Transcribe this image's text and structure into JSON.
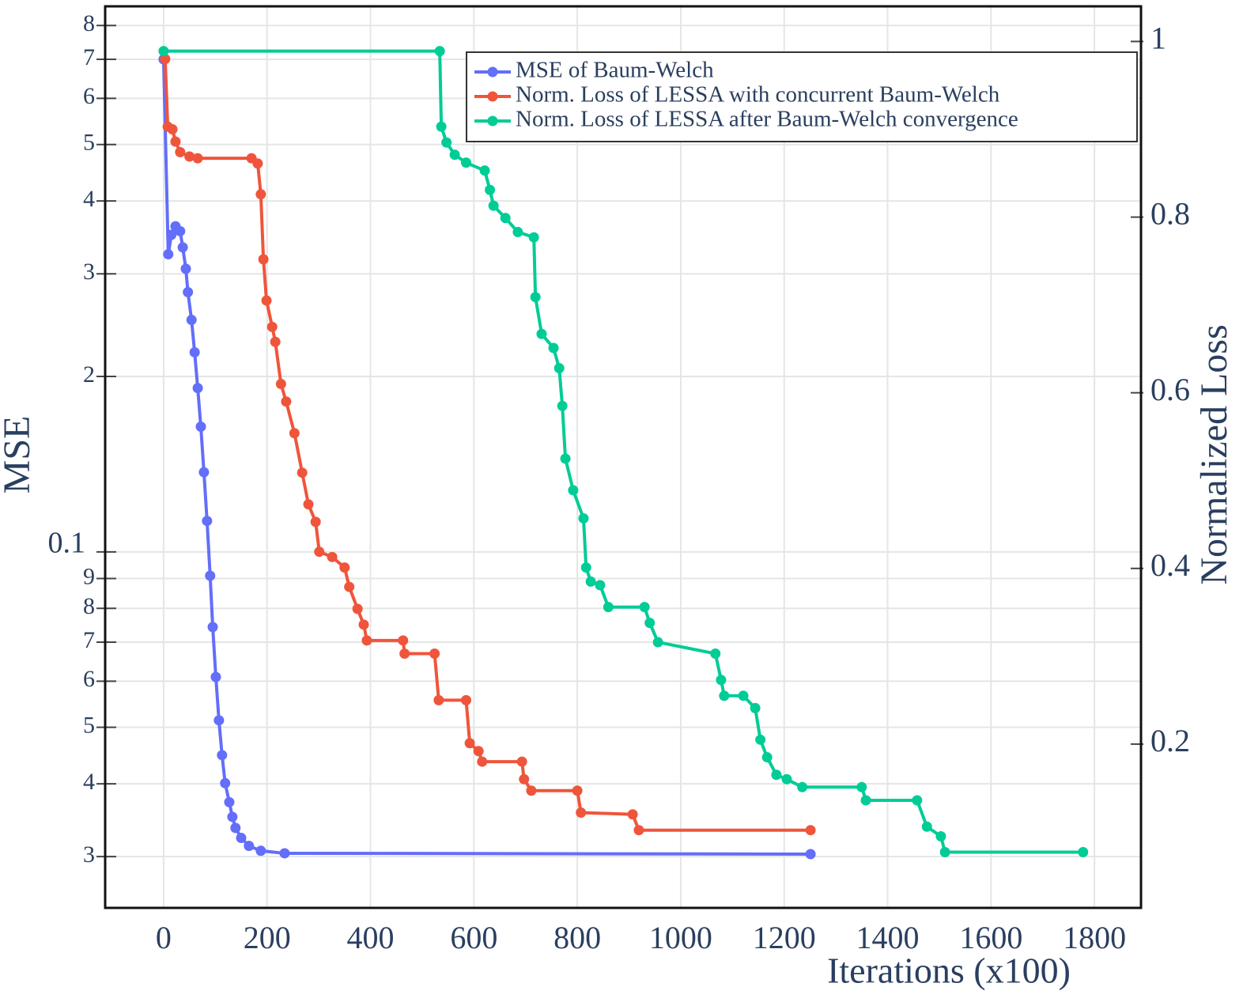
{
  "chart_data": {
    "type": "line",
    "x_label": "Iterations (x100)",
    "y_label": "MSE",
    "y2_label": "Normalized Loss",
    "xlim": [
      -113,
      1890
    ],
    "xticks": [
      0,
      200,
      400,
      600,
      800,
      1000,
      1200,
      1400,
      1600,
      1800
    ],
    "ylim": [
      0.0245,
      0.863
    ],
    "ylog": true,
    "yticks": [
      {
        "value": 0.03,
        "label": "3"
      },
      {
        "value": 0.04,
        "label": "4"
      },
      {
        "value": 0.05,
        "label": "5"
      },
      {
        "value": 0.06,
        "label": "6"
      },
      {
        "value": 0.07,
        "label": "7"
      },
      {
        "value": 0.08,
        "label": "8"
      },
      {
        "value": 0.09,
        "label": "9"
      },
      0.1,
      {
        "value": 0.2,
        "label": "2"
      },
      {
        "value": 0.3,
        "label": "3"
      },
      {
        "value": 0.4,
        "label": "4"
      },
      {
        "value": 0.5,
        "label": "5"
      },
      {
        "value": 0.6,
        "label": "6"
      },
      {
        "value": 0.7,
        "label": "7"
      },
      {
        "value": 0.8,
        "label": "8"
      }
    ],
    "y2lim": [
      0.0135,
      1.04
    ],
    "y2ticks": [
      0.2,
      0.4,
      0.6,
      0.8,
      1
    ],
    "grid": true,
    "legend": "upper right",
    "series": [
      {
        "name": "MSE of Baum-Welch",
        "color": "#636efa",
        "x": [
          0,
          9,
          15,
          23,
          32,
          37,
          43,
          47,
          54,
          60,
          66,
          72,
          78,
          84,
          90,
          95,
          101,
          107,
          113,
          119,
          127,
          133,
          139,
          150,
          165,
          188,
          234,
          1251
        ],
        "values": [
          0.7,
          0.324,
          0.35,
          0.362,
          0.355,
          0.333,
          0.306,
          0.279,
          0.25,
          0.22,
          0.191,
          0.164,
          0.137,
          0.113,
          0.091,
          0.0743,
          0.061,
          0.0514,
          0.0448,
          0.0401,
          0.0372,
          0.0351,
          0.0336,
          0.0323,
          0.0313,
          0.0307,
          0.0304,
          0.0303
        ]
      },
      {
        "name": "Norm. Loss of LESSA with concurrent Baum-Welch",
        "color": "#ef553b",
        "axis": "y2",
        "x": [
          3,
          8,
          17,
          23,
          32,
          50,
          66,
          170,
          182,
          188,
          193,
          199,
          210,
          216,
          227,
          237,
          253,
          268,
          280,
          294,
          301,
          326,
          350,
          359,
          375,
          387,
          393,
          463,
          466,
          524,
          532,
          585,
          592,
          609,
          616,
          693,
          697,
          711,
          800,
          807,
          907,
          919,
          1251
        ],
        "values": [
          0.98,
          0.903,
          0.9,
          0.886,
          0.874,
          0.869,
          0.867,
          0.867,
          0.861,
          0.826,
          0.752,
          0.705,
          0.675,
          0.658,
          0.61,
          0.59,
          0.554,
          0.509,
          0.473,
          0.453,
          0.419,
          0.413,
          0.401,
          0.379,
          0.354,
          0.336,
          0.318,
          0.318,
          0.303,
          0.303,
          0.25,
          0.25,
          0.201,
          0.192,
          0.18,
          0.18,
          0.16,
          0.147,
          0.147,
          0.122,
          0.12,
          0.102,
          0.102
        ]
      },
      {
        "name": "Norm. Loss of LESSA after Baum-Welch convergence",
        "color": "#00cc96",
        "axis": "y2",
        "x": [
          0,
          534,
          537,
          547,
          563,
          585,
          621,
          631,
          638,
          661,
          685,
          716,
          719,
          731,
          754,
          765,
          771,
          777,
          792,
          812,
          817,
          826,
          844,
          860,
          930,
          940,
          956,
          1067,
          1078,
          1084,
          1121,
          1144,
          1154,
          1167,
          1185,
          1205,
          1235,
          1350,
          1358,
          1457,
          1476,
          1503,
          1511,
          1778
        ],
        "values": [
          0.989,
          0.989,
          0.903,
          0.885,
          0.871,
          0.862,
          0.853,
          0.831,
          0.813,
          0.799,
          0.783,
          0.777,
          0.709,
          0.667,
          0.651,
          0.628,
          0.585,
          0.525,
          0.489,
          0.457,
          0.401,
          0.385,
          0.381,
          0.356,
          0.356,
          0.338,
          0.316,
          0.303,
          0.273,
          0.255,
          0.255,
          0.241,
          0.205,
          0.185,
          0.165,
          0.16,
          0.151,
          0.151,
          0.136,
          0.136,
          0.106,
          0.095,
          0.077,
          0.077
        ]
      }
    ]
  }
}
